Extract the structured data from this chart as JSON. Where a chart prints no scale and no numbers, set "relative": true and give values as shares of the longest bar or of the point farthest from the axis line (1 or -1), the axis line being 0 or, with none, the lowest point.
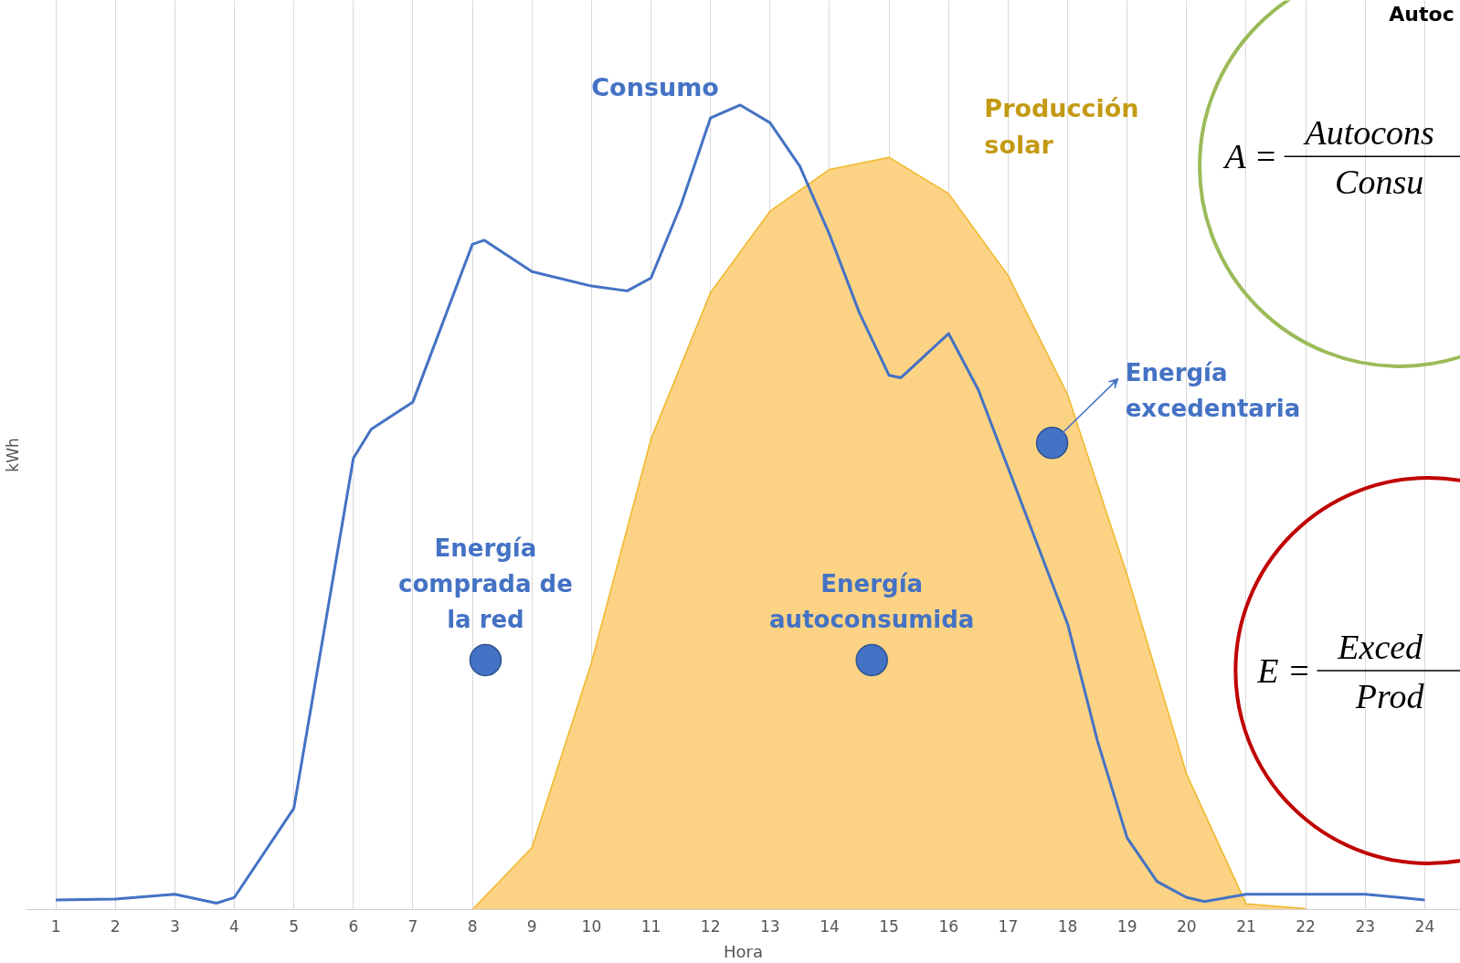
{
  "chart_data": {
    "type": "line",
    "relative": true,
    "xlabel": "Hora",
    "ylabel": "kWh",
    "xlim": [
      0.5,
      24.6
    ],
    "xticks": [
      1,
      2,
      3,
      4,
      5,
      6,
      7,
      8,
      9,
      10,
      11,
      12,
      13,
      14,
      15,
      16,
      17,
      18,
      19,
      20,
      21,
      22,
      23,
      24
    ],
    "grid": "x",
    "series": [
      {
        "name": "Producción\nsolar",
        "type": "area",
        "color": "#fcd17e",
        "x": [
          8,
          9,
          10,
          11,
          12,
          13,
          14,
          15,
          16,
          17,
          18,
          19,
          20,
          21,
          22
        ],
        "values": [
          0,
          0.077,
          0.307,
          0.585,
          0.767,
          0.868,
          0.92,
          0.935,
          0.89,
          0.788,
          0.64,
          0.416,
          0.168,
          0.007,
          0.001
        ]
      },
      {
        "name": "Consumo",
        "color": "#4472c4",
        "x": [
          1,
          2,
          3,
          3.7,
          4,
          5,
          5.5,
          6,
          6.3,
          7,
          8,
          8.2,
          9,
          10,
          10.6,
          11,
          11.5,
          12,
          12.5,
          13,
          13.5,
          14,
          14.5,
          15,
          15.2,
          16,
          16.5,
          17,
          17.5,
          18,
          18.5,
          19,
          19.5,
          20,
          20.3,
          21,
          22,
          23,
          24
        ],
        "values": [
          0.012,
          0.013,
          0.019,
          0.008,
          0.015,
          0.126,
          0.343,
          0.561,
          0.597,
          0.631,
          0.827,
          0.832,
          0.793,
          0.775,
          0.769,
          0.785,
          0.875,
          0.984,
          1.0,
          0.978,
          0.924,
          0.839,
          0.742,
          0.664,
          0.661,
          0.716,
          0.646,
          0.549,
          0.452,
          0.355,
          0.21,
          0.089,
          0.035,
          0.015,
          0.01,
          0.019,
          0.019,
          0.019,
          0.012
        ]
      }
    ],
    "annotations": [
      "Autoc",
      "A =",
      "Autocons",
      "Consu",
      "E =",
      "Exced",
      "Prod",
      {
        "text": "Energía\ncomprada de\nla red",
        "x": 8.22,
        "y": 0.31
      },
      {
        "text": "Energía\nautoconsumida",
        "x": 14.71,
        "y": 0.31
      },
      {
        "text": "Energía\nexcedentaria",
        "x": 17.74,
        "y": 0.58
      }
    ]
  }
}
